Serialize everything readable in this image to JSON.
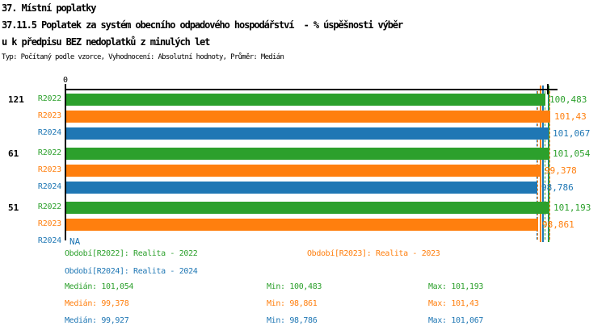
{
  "header": {
    "line1": "37. Místní poplatky",
    "line2": "37.11.5 Poplatek za systém obecního odpadového hospodářství  - % úspěšnosti výběr",
    "line3": "u k předpisu BEZ nedoplatků z minulých let",
    "meta": "Typ: Počítaný podle vzorce, Vyhodnocení: Absolutní hodnoty, Průměr: Medián"
  },
  "colors": {
    "green": "#2ca02c",
    "orange": "#ff7f0e",
    "blue": "#1f77b4",
    "axis": "#000000"
  },
  "chart_data": {
    "type": "bar",
    "orientation": "horizontal",
    "x_axis": {
      "zero_label": "0"
    },
    "categories": [
      "121",
      "61",
      "51"
    ],
    "series_order": [
      "R2022",
      "R2023",
      "R2024"
    ],
    "na_display": "NA",
    "groups": [
      {
        "label": "121",
        "rows": [
          {
            "series": "R2022",
            "value": 100.483,
            "display": "100,483",
            "color_key": "green"
          },
          {
            "series": "R2023",
            "value": 101.43,
            "display": "101,43",
            "color_key": "orange"
          },
          {
            "series": "R2024",
            "value": 101.067,
            "display": "101,067",
            "color_key": "blue"
          }
        ]
      },
      {
        "label": "61",
        "rows": [
          {
            "series": "R2022",
            "value": 101.054,
            "display": "101,054",
            "color_key": "green"
          },
          {
            "series": "R2023",
            "value": 99.378,
            "display": "99,378",
            "color_key": "orange"
          },
          {
            "series": "R2024",
            "value": 98.786,
            "display": "98,786",
            "color_key": "blue"
          }
        ]
      },
      {
        "label": "51",
        "rows": [
          {
            "series": "R2022",
            "value": 101.193,
            "display": "101,193",
            "color_key": "green"
          },
          {
            "series": "R2023",
            "value": 98.861,
            "display": "98,861",
            "color_key": "orange"
          },
          {
            "series": "R2024",
            "value": null,
            "display": "NA",
            "color_key": "blue"
          }
        ]
      }
    ],
    "stats": [
      {
        "series": "R2022",
        "color_key": "green",
        "median": 101.054,
        "min": 100.483,
        "max": 101.193,
        "median_display": "101,054",
        "min_display": "100,483",
        "max_display": "101,193"
      },
      {
        "series": "R2023",
        "color_key": "orange",
        "median": 99.378,
        "min": 98.861,
        "max": 101.43,
        "median_display": "99,378",
        "min_display": "98,861",
        "max_display": "101,43"
      },
      {
        "series": "R2024",
        "color_key": "blue",
        "median": 99.927,
        "min": 98.786,
        "max": 101.067,
        "median_display": "99,927",
        "min_display": "98,786",
        "max_display": "101,067"
      }
    ],
    "legend": [
      {
        "label": "Období[R2022]: Realita - 2022",
        "color_key": "green"
      },
      {
        "label": "Období[R2023]: Realita - 2023",
        "color_key": "orange"
      },
      {
        "label": "Období[R2024]: Realita - 2024",
        "color_key": "blue"
      }
    ],
    "stat_labels": {
      "median": "Medián",
      "min": "Min",
      "max": "Max"
    }
  }
}
